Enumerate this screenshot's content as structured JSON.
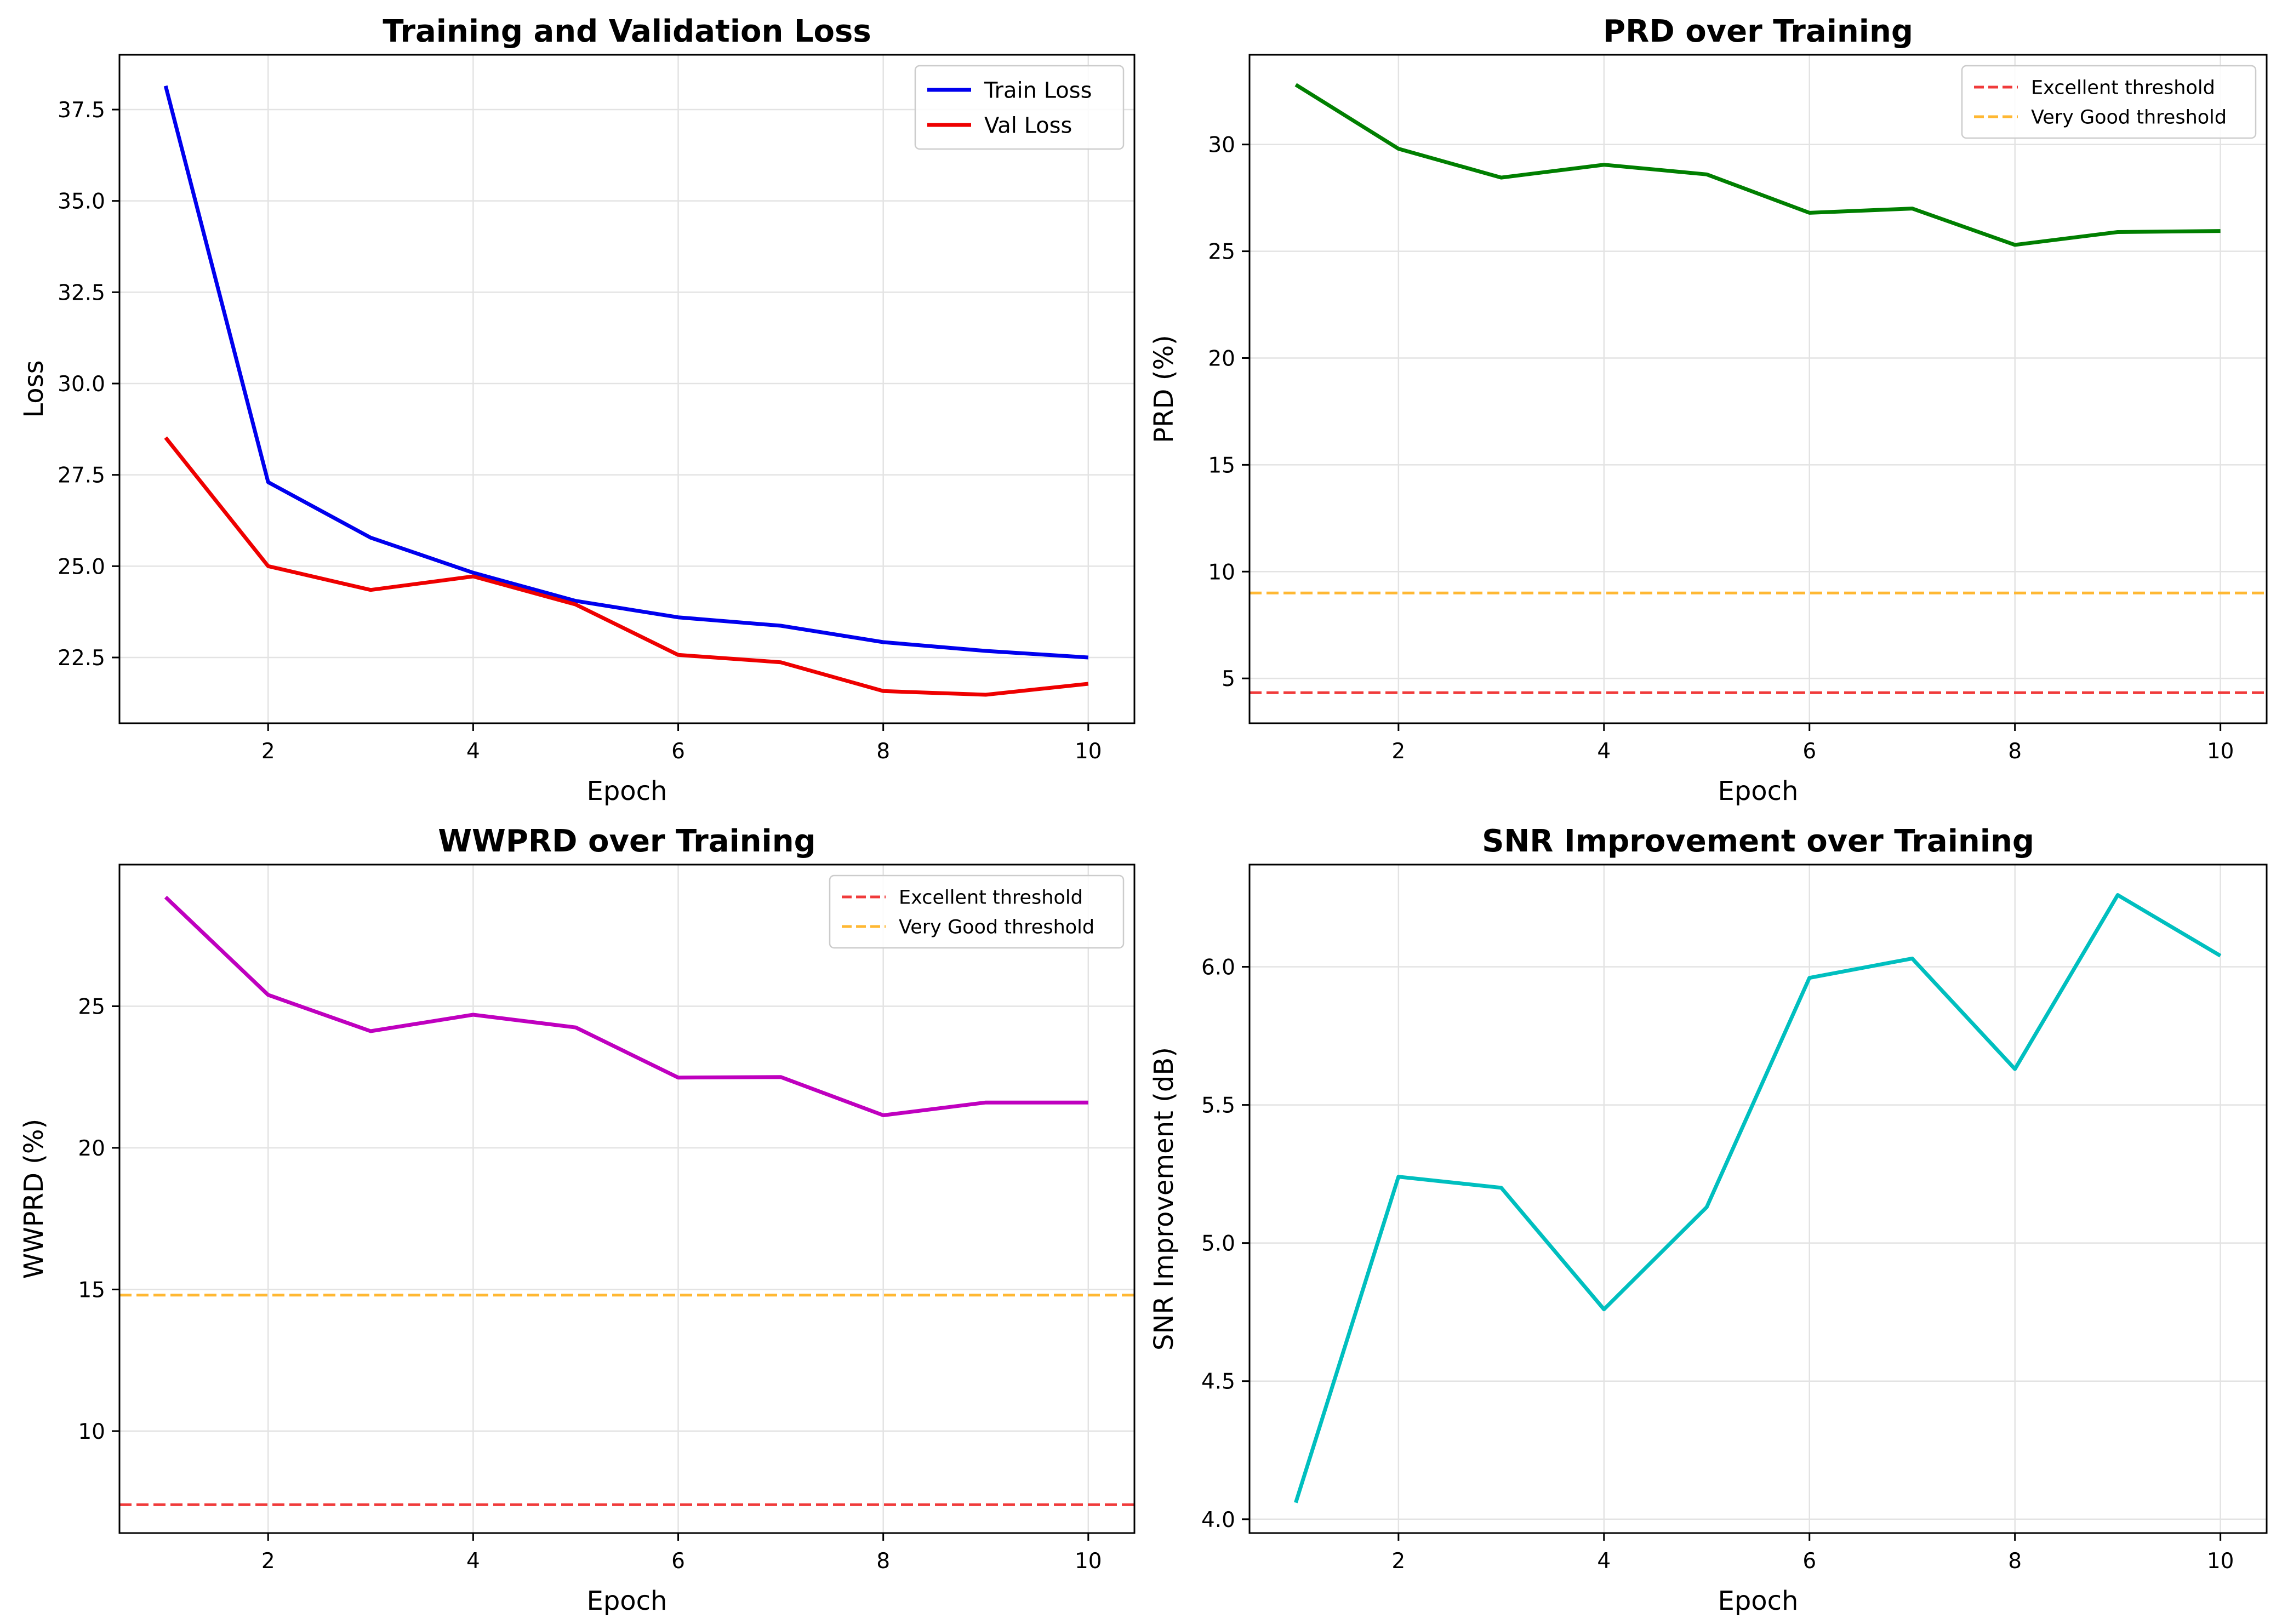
{
  "chart_data": [
    {
      "type": "line",
      "title": "Training and Validation Loss",
      "xlabel": "Epoch",
      "ylabel": "Loss",
      "x": [
        1,
        2,
        3,
        4,
        5,
        6,
        7,
        8,
        9,
        10
      ],
      "xlim": [
        0.55,
        10.45
      ],
      "ylim": [
        20.7,
        39.0
      ],
      "xticks": [
        2,
        4,
        6,
        8,
        10
      ],
      "yticks": [
        22.5,
        25.0,
        27.5,
        30.0,
        32.5,
        35.0,
        37.5
      ],
      "ytick_labels": [
        "22.5",
        "25.0",
        "27.5",
        "30.0",
        "32.5",
        "35.0",
        "37.5"
      ],
      "grid": true,
      "legend": "top-right",
      "series": [
        {
          "name": "Train Loss",
          "color": "#0000ee",
          "style": "solid",
          "values": [
            38.15,
            27.3,
            25.78,
            24.82,
            24.05,
            23.6,
            23.37,
            22.92,
            22.68,
            22.5
          ]
        },
        {
          "name": "Val Loss",
          "color": "#ee0000",
          "style": "solid",
          "values": [
            28.52,
            25.0,
            24.35,
            24.72,
            23.95,
            22.57,
            22.37,
            21.58,
            21.48,
            21.78
          ]
        }
      ]
    },
    {
      "type": "line",
      "title": "PRD over Training",
      "xlabel": "Epoch",
      "ylabel": "PRD (%)",
      "x": [
        1,
        2,
        3,
        4,
        5,
        6,
        7,
        8,
        9,
        10
      ],
      "xlim": [
        0.55,
        10.45
      ],
      "ylim": [
        2.9,
        34.2
      ],
      "xticks": [
        2,
        4,
        6,
        8,
        10
      ],
      "yticks": [
        5,
        10,
        15,
        20,
        25,
        30
      ],
      "ytick_labels": [
        "5",
        "10",
        "15",
        "20",
        "25",
        "30"
      ],
      "grid": true,
      "legend": "top-right",
      "series": [
        {
          "name": "",
          "color": "#007f00",
          "style": "solid",
          "values": [
            32.8,
            29.8,
            28.45,
            29.05,
            28.6,
            26.8,
            27.0,
            25.3,
            25.9,
            25.95
          ]
        }
      ],
      "reference_lines": [
        {
          "name": "Excellent threshold",
          "y": 4.33,
          "color": "#f03b3b",
          "style": "dashed"
        },
        {
          "name": "Very Good threshold",
          "y": 9.0,
          "color": "#ffb833",
          "style": "dashed"
        }
      ]
    },
    {
      "type": "line",
      "title": "WWPRD over Training",
      "xlabel": "Epoch",
      "ylabel": "WWPRD (%)",
      "x": [
        1,
        2,
        3,
        4,
        5,
        6,
        7,
        8,
        9,
        10
      ],
      "xlim": [
        0.55,
        10.45
      ],
      "ylim": [
        6.4,
        30.0
      ],
      "xticks": [
        2,
        4,
        6,
        8,
        10
      ],
      "yticks": [
        10,
        15,
        20,
        25
      ],
      "ytick_labels": [
        "10",
        "15",
        "20",
        "25"
      ],
      "grid": true,
      "legend": "top-right",
      "series": [
        {
          "name": "",
          "color": "#bf00bf",
          "style": "solid",
          "values": [
            28.85,
            25.4,
            24.12,
            24.7,
            24.25,
            22.48,
            22.5,
            21.15,
            21.6,
            21.6
          ]
        }
      ],
      "reference_lines": [
        {
          "name": "Excellent threshold",
          "y": 7.4,
          "color": "#f03b3b",
          "style": "dashed"
        },
        {
          "name": "Very Good threshold",
          "y": 14.8,
          "color": "#ffb833",
          "style": "dashed"
        }
      ]
    },
    {
      "type": "line",
      "title": "SNR Improvement over Training",
      "xlabel": "Epoch",
      "ylabel": "SNR Improvement (dB)",
      "x": [
        1,
        2,
        3,
        4,
        5,
        6,
        7,
        8,
        9,
        10
      ],
      "xlim": [
        0.55,
        10.45
      ],
      "ylim": [
        3.95,
        6.37
      ],
      "xticks": [
        2,
        4,
        6,
        8,
        10
      ],
      "yticks": [
        4.0,
        4.5,
        5.0,
        5.5,
        6.0
      ],
      "ytick_labels": [
        "4.0",
        "4.5",
        "5.0",
        "5.5",
        "6.0"
      ],
      "grid": true,
      "legend": "none",
      "series": [
        {
          "name": "",
          "color": "#00bfbf",
          "style": "solid",
          "values": [
            4.06,
            5.24,
            5.2,
            4.76,
            5.13,
            5.96,
            6.03,
            5.63,
            6.26,
            6.04
          ]
        }
      ]
    }
  ]
}
